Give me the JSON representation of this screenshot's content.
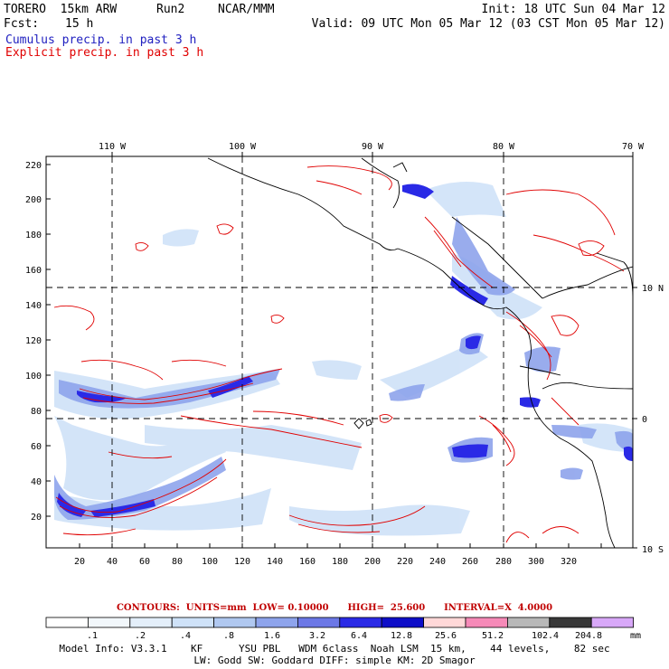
{
  "header": {
    "model": "TORERO  15km ARW",
    "run": "Run2",
    "org": "NCAR/MMM",
    "init": "Init: 18 UTC Sun 04 Mar 12",
    "fcst_label": "Fcst:",
    "fcst_value": "15 h",
    "valid": "Valid: 09 UTC Mon 05 Mar 12 (03 CST Mon 05 Mar 12)",
    "legend_cumulus": "Cumulus precip. in past 3 h",
    "legend_explicit": "Explicit precip. in past 3 h",
    "cumulus_color": "#2020c0",
    "explicit_color": "#e00000"
  },
  "axes": {
    "top_lon": [
      "110 W",
      "100 W",
      "90 W",
      "80 W",
      "70 W"
    ],
    "right_lat": [
      "10 N",
      "0",
      "10 S"
    ],
    "left_y": [
      "220",
      "200",
      "180",
      "160",
      "140",
      "120",
      "100",
      "80",
      "60",
      "40",
      "20"
    ],
    "bottom_x": [
      "20",
      "40",
      "60",
      "80",
      "100",
      "120",
      "140",
      "160",
      "180",
      "200",
      "220",
      "240",
      "260",
      "280",
      "300",
      "320"
    ]
  },
  "contours_text": "CONTOURS:  UNITS=mm  LOW= 0.10000      HIGH=  25.600      INTERVAL=X  4.0000",
  "colorbar": {
    "colors": [
      "#ffffff",
      "#f2f7fb",
      "#e4effa",
      "#cfe2f8",
      "#b0c8f0",
      "#8ea4ec",
      "#6c78e6",
      "#2a2ae6",
      "#0e0ec8",
      "#ffd8d8",
      "#f68ab8",
      "#b8b8b8",
      "#383838",
      "#d8a8f8"
    ],
    "labels": [
      ".1",
      ".2",
      ".4",
      ".8",
      "1.6",
      "3.2",
      "6.4",
      "12.8",
      "25.6",
      "51.2",
      "102.4",
      "204.8"
    ],
    "unit": "mm"
  },
  "footer": {
    "line1": "Model Info: V3.3.1    KF      YSU PBL   WDM 6class  Noah LSM  15 km,    44 levels,    82 sec",
    "line2": "LW: Godd SW: Goddard DIFF: simple KM: 2D Smagor"
  }
}
